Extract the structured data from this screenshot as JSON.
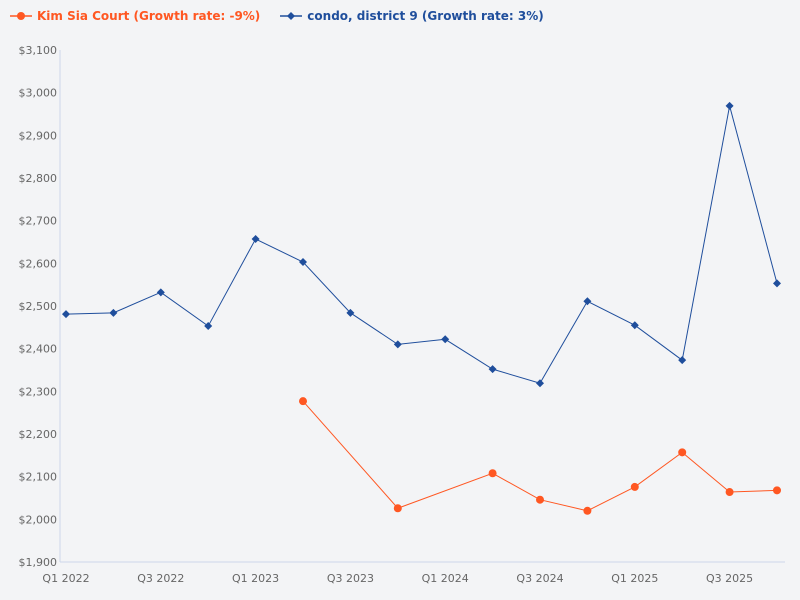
{
  "chart_data": {
    "type": "line",
    "title": "",
    "xlabel": "",
    "ylabel": "",
    "categories": [
      "Q1 2022",
      "Q2 2022",
      "Q3 2022",
      "Q4 2022",
      "Q1 2023",
      "Q2 2023",
      "Q3 2023",
      "Q4 2023",
      "Q1 2024",
      "Q2 2024",
      "Q3 2024",
      "Q4 2024",
      "Q1 2025",
      "Q2 2025",
      "Q3 2025",
      "Q4 2025"
    ],
    "x_tick_labels": [
      "Q1 2022",
      "Q3 2022",
      "Q1 2023",
      "Q3 2023",
      "Q1 2024",
      "Q3 2024",
      "Q1 2025",
      "Q3 2025"
    ],
    "ylim": [
      1900,
      3100
    ],
    "y_ticks": [
      1900,
      2000,
      2100,
      2200,
      2300,
      2400,
      2500,
      2600,
      2700,
      2800,
      2900,
      3000,
      3100
    ],
    "y_tick_labels": [
      "$1,900",
      "$2,000",
      "$2,100",
      "$2,200",
      "$2,300",
      "$2,400",
      "$2,500",
      "$2,600",
      "$2,700",
      "$2,800",
      "$2,900",
      "$3,000",
      "$3,100"
    ],
    "grid": false,
    "legend_placement": "top-left",
    "series": [
      {
        "name": "Kim Sia Court (Growth rate: -9%)",
        "color": "#ff5722",
        "marker": "circle",
        "values": [
          null,
          null,
          null,
          null,
          null,
          2277,
          null,
          2026,
          null,
          2108,
          2046,
          2020,
          2076,
          2157,
          2064,
          2068
        ]
      },
      {
        "name": "condo, district 9 (Growth rate: 3%)",
        "color": "#1f4e9c",
        "marker": "diamond",
        "values": [
          2481,
          2484,
          2532,
          2453,
          2657,
          2603,
          2484,
          2410,
          2422,
          2352,
          2319,
          2511,
          2455,
          2373,
          2969,
          2553
        ]
      }
    ]
  }
}
